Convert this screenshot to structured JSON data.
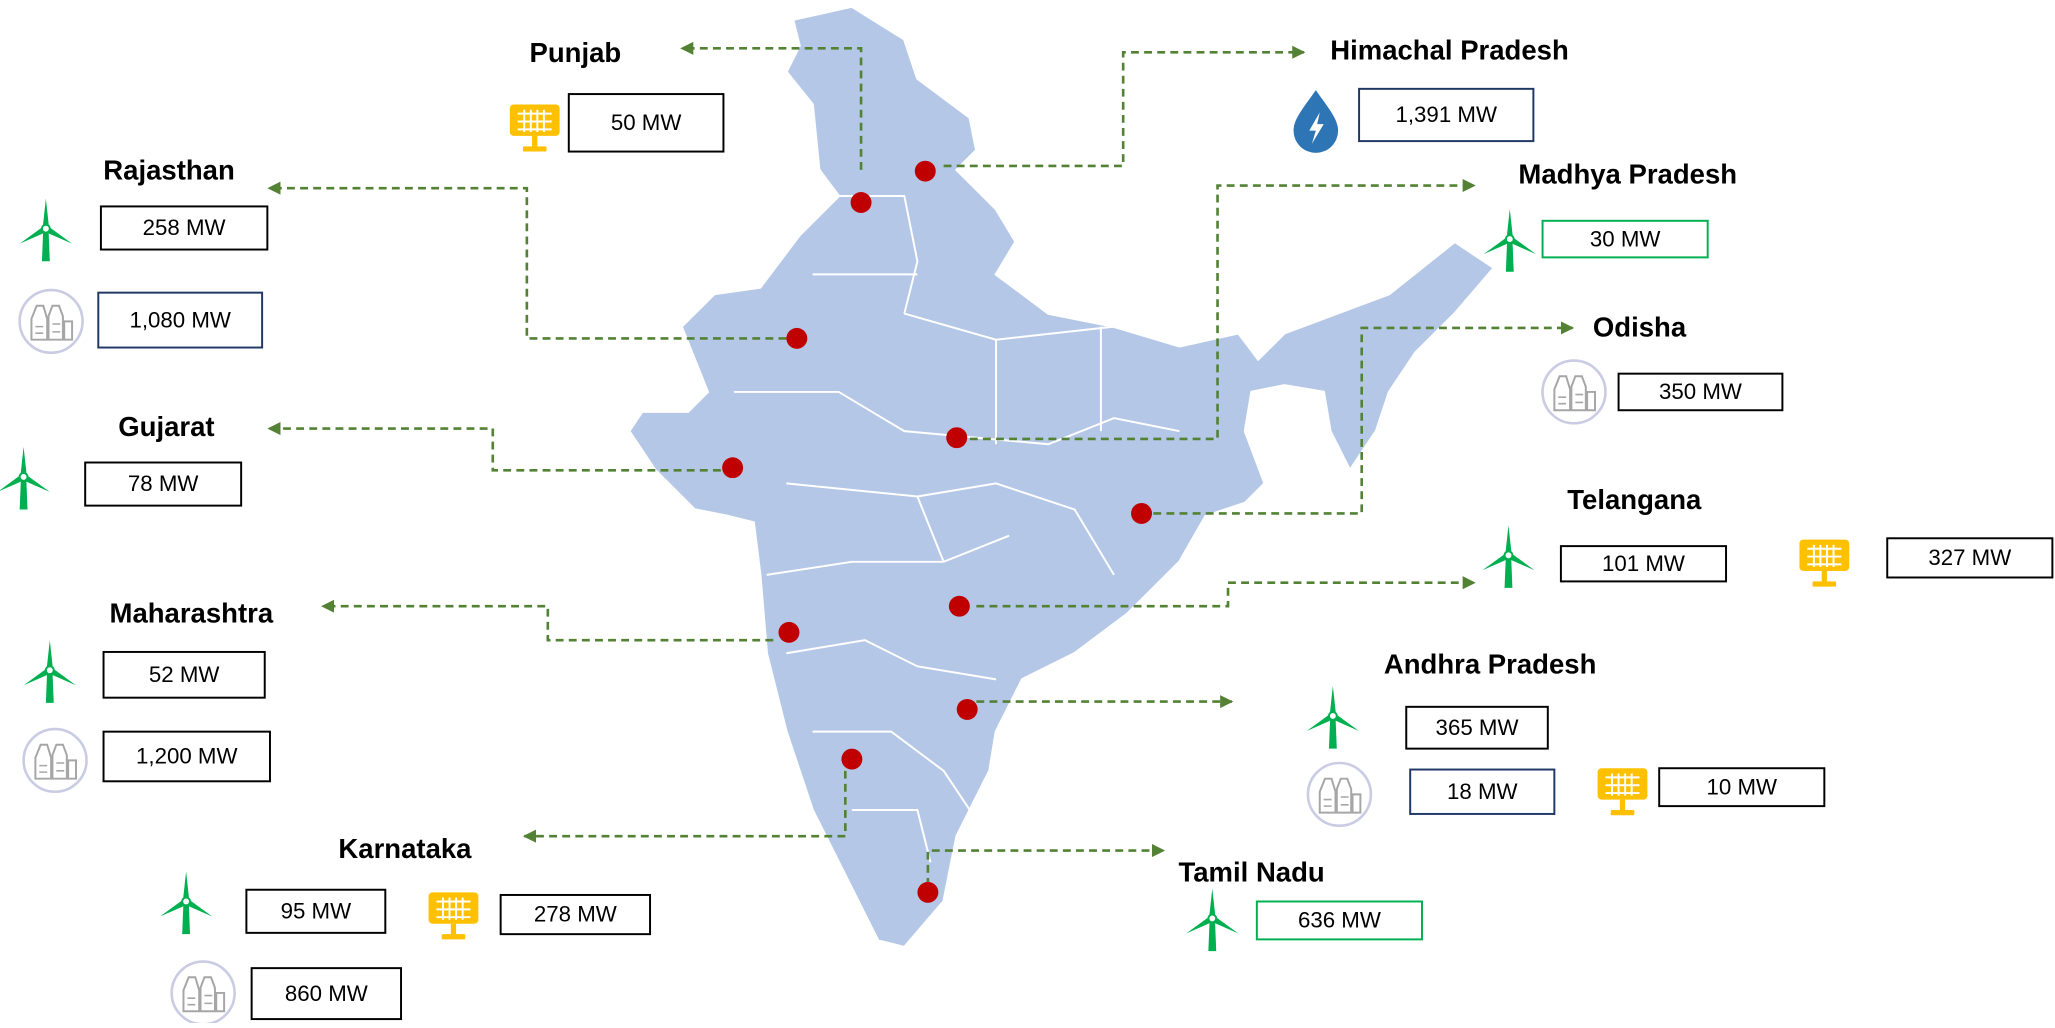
{
  "states": [
    {
      "name": "Punjab",
      "capacities": [
        "50 MW"
      ]
    },
    {
      "name": "Himachal Pradesh",
      "capacities": [
        "1,391 MW"
      ]
    },
    {
      "name": "Rajasthan",
      "capacities": [
        "258 MW",
        "1,080 MW"
      ]
    },
    {
      "name": "Madhya Pradesh",
      "capacities": [
        "30 MW"
      ]
    },
    {
      "name": "Gujarat",
      "capacities": [
        "78 MW"
      ]
    },
    {
      "name": "Odisha",
      "capacities": [
        "350 MW"
      ]
    },
    {
      "name": "Maharashtra",
      "capacities": [
        "52 MW",
        "1,200 MW"
      ]
    },
    {
      "name": "Telangana",
      "capacities": [
        "101 MW",
        "327 MW"
      ]
    },
    {
      "name": "Andhra Pradesh",
      "capacities": [
        "365 MW",
        "18 MW",
        "10 MW"
      ]
    },
    {
      "name": "Karnataka",
      "capacities": [
        "95 MW",
        "278 MW",
        "860 MW"
      ]
    },
    {
      "name": "Tamil Nadu",
      "capacities": [
        "636 MW"
      ]
    }
  ]
}
